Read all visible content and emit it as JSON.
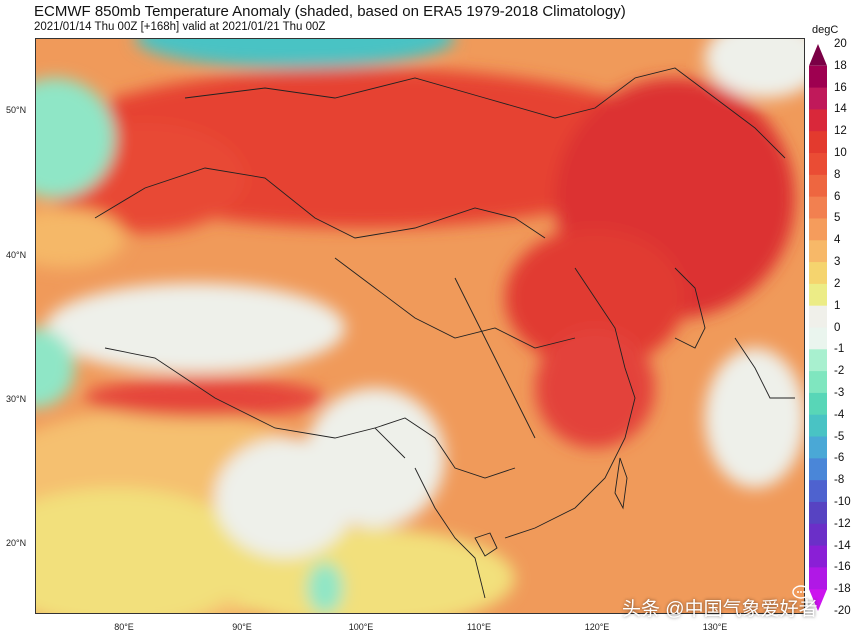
{
  "title": "ECMWF 850mb Temperature Anomaly (shaded, based on ERA5 1979-2018 Climatology)",
  "subtitle": "2021/01/14 Thu 00Z [+168h] valid at 2021/01/21 Thu 00Z",
  "unit": "degC",
  "lat_labels": [
    "50°N",
    "40°N",
    "30°N",
    "20°N"
  ],
  "lon_labels": [
    "80°E",
    "90°E",
    "100°E",
    "110°E",
    "120°E",
    "130°E"
  ],
  "colorbar": {
    "levels": [
      "20",
      "18",
      "16",
      "14",
      "12",
      "10",
      "8",
      "6",
      "5",
      "4",
      "3",
      "2",
      "1",
      "0",
      "-1",
      "-2",
      "-3",
      "-4",
      "-5",
      "-6",
      "-8",
      "-10",
      "-12",
      "-14",
      "-16",
      "-18",
      "-20"
    ],
    "colors": [
      "#7a0045",
      "#9e0050",
      "#c0195a",
      "#d9283a",
      "#e33a2e",
      "#ea4c34",
      "#ee6640",
      "#f28050",
      "#f59c5c",
      "#f7b868",
      "#f5d46e",
      "#ecec86",
      "#f0f0ea",
      "#eaf5ee",
      "#a8f0cf",
      "#7fe6bf",
      "#58d6b7",
      "#49c3c4",
      "#4aa8d6",
      "#4a86d8",
      "#4e62cf",
      "#5743c2",
      "#6b2fc8",
      "#8a1fd6",
      "#b018e6",
      "#cc14ee"
    ]
  },
  "map_colors": {
    "base": "#f09a5a",
    "warm": "#ea4c34",
    "hot": "#dc3030",
    "mild": "#f5b868",
    "neutral": "#eef0ea",
    "cool": "#8fe6c6",
    "cold": "#49c3c4",
    "yellow": "#f2e07c"
  },
  "watermark": "头条 @中国气象爱好者",
  "watermark_faint": "中国气象爱好者"
}
